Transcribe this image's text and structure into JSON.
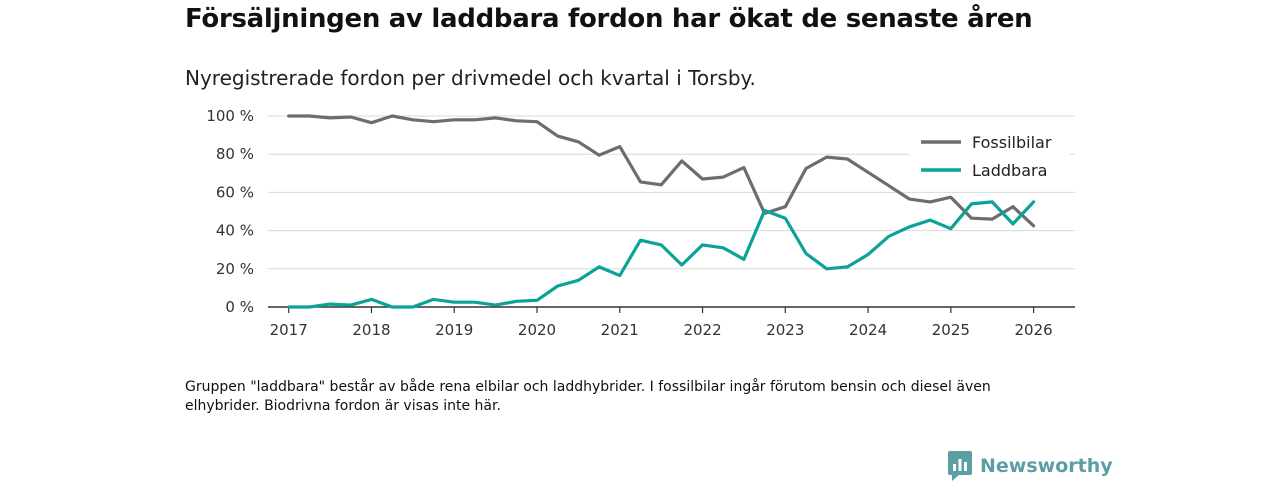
{
  "header": {
    "title": "Försäljningen av laddbara fordon har ökat de senaste åren",
    "subtitle": "Nyregistrerade fordon per drivmedel och kvartal i Torsby."
  },
  "footer": {
    "note": "Gruppen \"laddbara\" består av både rena elbilar och laddhybrider. I fossilbilar ingår förutom bensin och diesel även elhybrider. Biodrivna fordon är visas inte här.",
    "brand": "Newsworthy"
  },
  "colors": {
    "fossil": "#6d6c71",
    "laddbara": "#0aa396",
    "grid": "#d9d9d9",
    "axis": "#333333",
    "brand": "#5b9ea3"
  },
  "icons": {
    "brand_logo": "bar-chart-speech-bubble-icon"
  },
  "chart_data": {
    "type": "line",
    "title": "Försäljningen av laddbara fordon har ökat de senaste åren",
    "subtitle": "Nyregistrerade fordon per drivmedel och kvartal i Torsby.",
    "xlabel": "",
    "ylabel": "",
    "xlim": [
      2016.75,
      2026.5
    ],
    "ylim": [
      0,
      100
    ],
    "x_ticks": [
      2017,
      2018,
      2019,
      2020,
      2021,
      2022,
      2023,
      2024,
      2025,
      2026
    ],
    "y_ticks": [
      0,
      20,
      40,
      60,
      80,
      100
    ],
    "y_tick_labels": [
      "0 %",
      "20 %",
      "40 %",
      "60 %",
      "80 %",
      "100 %"
    ],
    "grid": true,
    "legend_position": "top-right",
    "x": [
      2017.0,
      2017.25,
      2017.5,
      2017.75,
      2018.0,
      2018.25,
      2018.5,
      2018.75,
      2019.0,
      2019.25,
      2019.5,
      2019.75,
      2020.0,
      2020.25,
      2020.5,
      2020.75,
      2021.0,
      2021.25,
      2021.5,
      2021.75,
      2022.0,
      2022.25,
      2022.5,
      2022.75,
      2023.0,
      2023.25,
      2023.5,
      2023.75,
      2024.0,
      2024.25,
      2024.5,
      2024.75,
      2025.0,
      2025.25,
      2025.5,
      2025.75,
      2026.0
    ],
    "series": [
      {
        "name": "Fossilbilar",
        "color": "#6d6c71",
        "values": [
          100,
          100,
          99,
          99.5,
          96.5,
          100,
          98,
          97,
          98,
          98,
          99,
          97.5,
          97,
          89.5,
          86.5,
          79.5,
          84,
          65.5,
          64,
          76.5,
          67,
          68,
          73,
          49,
          52.5,
          72.5,
          78.5,
          77.5,
          70.5,
          63.5,
          56.5,
          55,
          57.5,
          46.5,
          46,
          52.5,
          42.5
        ]
      },
      {
        "name": "Laddbara",
        "color": "#0aa396",
        "values": [
          0,
          0,
          1.5,
          1,
          4,
          0,
          0,
          4,
          2.5,
          2.5,
          1,
          3,
          3.5,
          11,
          14,
          21,
          16.5,
          35,
          32.5,
          22,
          32.5,
          31,
          25,
          50.5,
          46.5,
          28,
          20,
          21,
          27.5,
          37,
          42,
          45.5,
          41,
          54,
          55,
          43.5,
          55
        ]
      }
    ]
  }
}
